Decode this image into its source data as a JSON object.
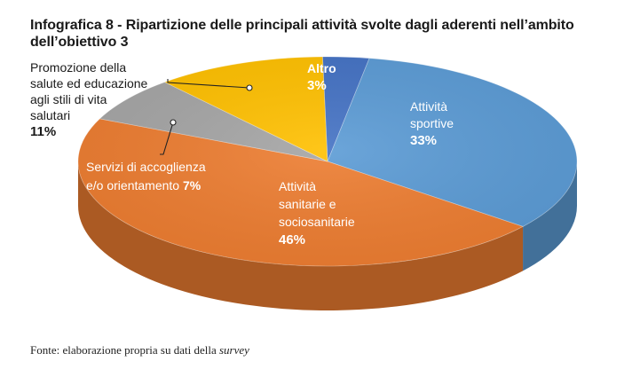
{
  "title": "Infografica 8 - Ripartizione delle principali attività svolte dagli aderenti nell’ambito dell’obiettivo 3",
  "source": {
    "prefix": "Fonte: elaborazione propria su dati della ",
    "emphasis": "survey"
  },
  "colors": {
    "sportive": "#5B9BD5",
    "sanitarie": "#ED7D31",
    "accoglienza": "#A5A5A5",
    "promozione": "#FFC000",
    "altro": "#4472C4"
  },
  "chart_data": {
    "type": "pie",
    "three_d": true,
    "title": "Infografica 8 - Ripartizione delle principali attività svolte dagli aderenti nell’ambito dell’obiettivo 3",
    "slices": [
      {
        "key": "sportive",
        "lines": [
          "Attività",
          "sportive"
        ],
        "label": "Attività sportive",
        "value": 33,
        "pct": "33%"
      },
      {
        "key": "sanitarie",
        "lines": [
          "Attività",
          "sanitarie e",
          "sociosanitarie"
        ],
        "label": "Attività sanitarie e sociosanitarie",
        "value": 46,
        "pct": "46%"
      },
      {
        "key": "accoglienza",
        "lines": [
          "Servizi di accoglienza",
          "e/o orientamento"
        ],
        "label": "Servizi di accoglienza e/o orientamento",
        "value": 7,
        "pct": "7%"
      },
      {
        "key": "promozione",
        "lines": [
          "Promozione della",
          "salute ed educazione",
          "agli stili di vita",
          "salutari"
        ],
        "label": "Promozione della salute ed educazione agli stili di vita salutari",
        "value": 11,
        "pct": "11%"
      },
      {
        "key": "altro",
        "lines": [
          "Altro"
        ],
        "label": "Altro",
        "value": 3,
        "pct": "3%"
      }
    ]
  }
}
